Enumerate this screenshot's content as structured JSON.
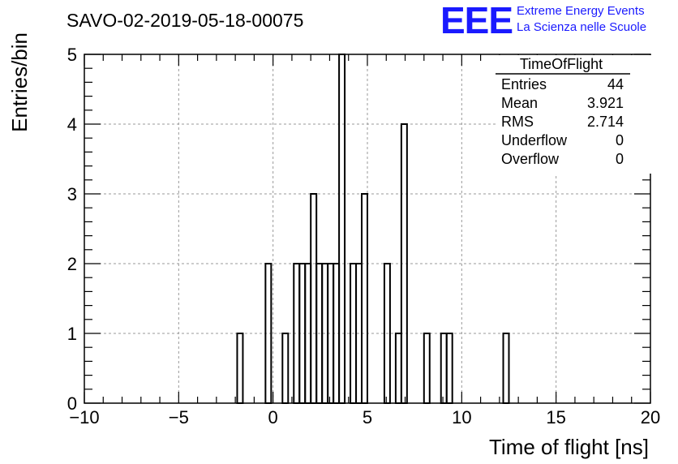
{
  "header": {
    "run_title": "SAVO-02-2019-05-18-00075",
    "logo_text": "EEE",
    "logo_line1": "Extreme Energy Events",
    "logo_line2": "La Scienza nelle Scuole",
    "logo_color": "#1a1aff"
  },
  "stats": {
    "title": "TimeOfFlight",
    "rows": [
      {
        "label": "Entries",
        "value": "44"
      },
      {
        "label": "Mean",
        "value": "3.921"
      },
      {
        "label": "RMS",
        "value": "2.714"
      },
      {
        "label": "Underflow",
        "value": "0"
      },
      {
        "label": "Overflow",
        "value": "0"
      }
    ]
  },
  "chart_data": {
    "type": "bar",
    "title": "SAVO-02-2019-05-18-00075",
    "xlabel": "Time of flight [ns]",
    "ylabel": "Entries/bin",
    "xlim": [
      -10,
      20
    ],
    "ylim": [
      0,
      5
    ],
    "x_ticks": [
      -10,
      -5,
      0,
      5,
      10,
      15,
      20
    ],
    "x_tick_labels": [
      "−10",
      "−5",
      "0",
      "5",
      "10",
      "15",
      "20"
    ],
    "y_ticks": [
      0,
      1,
      2,
      3,
      4,
      5
    ],
    "y_tick_labels": [
      "0",
      "1",
      "2",
      "3",
      "4",
      "5"
    ],
    "grid": true,
    "bin_width": 0.3,
    "bins": [
      {
        "low": -1.9,
        "count": 1
      },
      {
        "low": -0.4,
        "count": 2
      },
      {
        "low": 0.5,
        "count": 1
      },
      {
        "low": 1.1,
        "count": 2
      },
      {
        "low": 1.4,
        "count": 2
      },
      {
        "low": 1.7,
        "count": 2
      },
      {
        "low": 2.0,
        "count": 3
      },
      {
        "low": 2.3,
        "count": 2
      },
      {
        "low": 2.6,
        "count": 2
      },
      {
        "low": 2.9,
        "count": 2
      },
      {
        "low": 3.2,
        "count": 2
      },
      {
        "low": 3.5,
        "count": 5
      },
      {
        "low": 3.8,
        "count": 0
      },
      {
        "low": 4.1,
        "count": 2
      },
      {
        "low": 4.4,
        "count": 2
      },
      {
        "low": 4.7,
        "count": 3
      },
      {
        "low": 5.9,
        "count": 2
      },
      {
        "low": 6.5,
        "count": 1
      },
      {
        "low": 6.8,
        "count": 4
      },
      {
        "low": 8.0,
        "count": 1
      },
      {
        "low": 8.9,
        "count": 1
      },
      {
        "low": 9.2,
        "count": 1
      },
      {
        "low": 12.2,
        "count": 1
      }
    ]
  }
}
